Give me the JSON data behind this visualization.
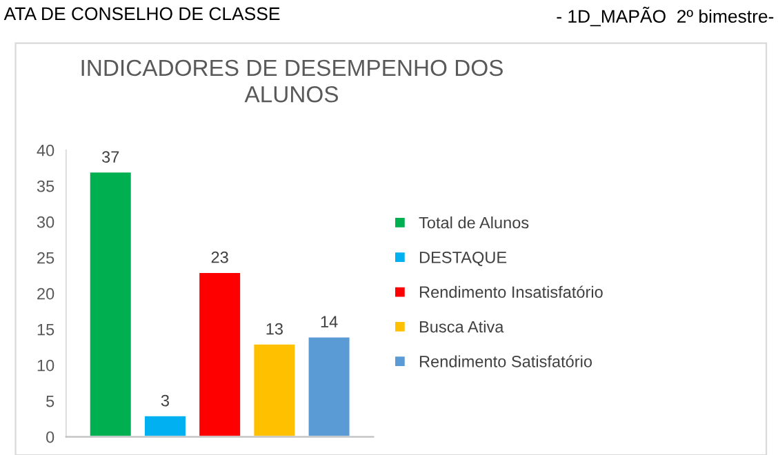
{
  "chart_data": {
    "type": "bar",
    "title": "INDICADORES DE DESEMPENHO DOS\nALUNOS",
    "annotations": [
      "ATA DE CONSELHO DE CLASSE",
      "- 1D_MAPÃO  2º bimestre-"
    ],
    "categories": [
      null
    ],
    "series": [
      {
        "name": "Total de Alunos",
        "color": "#00b050",
        "values": [
          37
        ]
      },
      {
        "name": "DESTAQUE",
        "color": "#00b0f0",
        "values": [
          3
        ]
      },
      {
        "name": "Rendimento Insatisfatório",
        "color": "#ff0000",
        "values": [
          23
        ]
      },
      {
        "name": "Busca Ativa",
        "color": "#ffc000",
        "values": [
          13
        ]
      },
      {
        "name": "Rendimento Satisfatório",
        "color": "#5b9bd5",
        "values": [
          14
        ]
      }
    ],
    "ylim": [
      0,
      40
    ],
    "yticks": [
      0,
      5,
      10,
      15,
      20,
      25,
      30,
      35,
      40
    ],
    "data_labels": true,
    "legend": "right",
    "grid": false
  }
}
